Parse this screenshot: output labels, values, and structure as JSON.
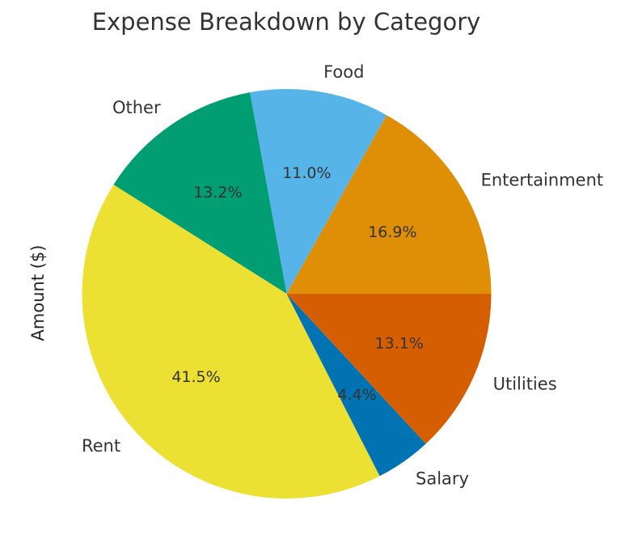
{
  "title": "Expense Breakdown by Category",
  "ylabel": "Amount ($)",
  "text_color": "#333333",
  "background_color": "#ffffff",
  "chart_data": {
    "type": "pie",
    "title": "Expense Breakdown by Category",
    "ylabel": "Amount ($)",
    "start_angle_deg": 0,
    "direction": "counterclockwise",
    "legend": "none",
    "labels_position": "outside",
    "percent_labels_position": "inside",
    "slices": [
      {
        "label": "Entertainment",
        "pct": 16.9,
        "pct_label": "16.9%",
        "color": "#DE8F05"
      },
      {
        "label": "Food",
        "pct": 11.0,
        "pct_label": "11.0%",
        "color": "#56B4E9"
      },
      {
        "label": "Other",
        "pct": 13.2,
        "pct_label": "13.2%",
        "color": "#029E73"
      },
      {
        "label": "Rent",
        "pct": 41.5,
        "pct_label": "41.5%",
        "color": "#ECE133"
      },
      {
        "label": "Salary",
        "pct": 4.4,
        "pct_label": "4.4%",
        "color": "#0173B2"
      },
      {
        "label": "Utilities",
        "pct": 13.1,
        "pct_label": "13.1%",
        "color": "#D55E00"
      }
    ]
  }
}
